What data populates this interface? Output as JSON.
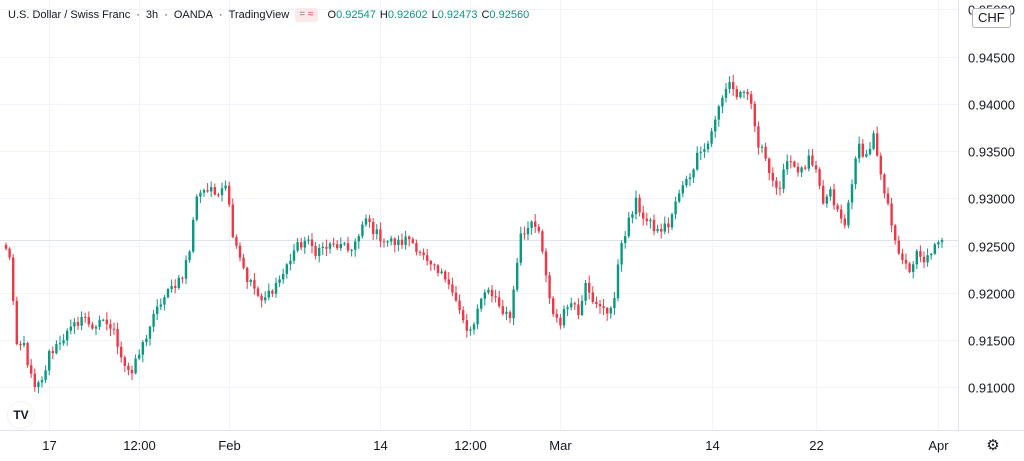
{
  "legend": {
    "symbol": "U.S. Dollar / Swiss Franc",
    "interval": "3h",
    "source": "OANDA",
    "platform": "TradingView",
    "o_label": "O",
    "o_value": "0.92547",
    "h_label": "H",
    "h_value": "0.92602",
    "l_label": "L",
    "l_value": "0.92473",
    "c_label": "C",
    "c_value": "0.92560"
  },
  "currency_button": "CHF",
  "logo_text": "TV",
  "colors": {
    "up": "#089981",
    "down": "#f23645",
    "grid": "#f0f3fa",
    "axis_text": "#131722",
    "price_line": "#dfe3ec"
  },
  "icons": {
    "settings": "gear-icon",
    "logo": "tradingview-logo-icon",
    "compare": "approx-icon"
  },
  "chart_data": {
    "type": "candlestick",
    "title": "U.S. Dollar / Swiss Franc · 3h · OANDA",
    "xlabel": "",
    "ylabel": "",
    "ylim": [
      0.9055,
      0.951
    ],
    "y_ticks": [
      0.91,
      0.915,
      0.92,
      0.925,
      0.93,
      0.935,
      0.94,
      0.945,
      0.95
    ],
    "y_tick_labels": [
      "0.91000",
      "0.91500",
      "0.92000",
      "0.92500",
      "0.93000",
      "0.93500",
      "0.94000",
      "0.94500",
      "0.95000"
    ],
    "x_ticks": [
      {
        "label": "17",
        "bar": 12
      },
      {
        "label": "12:00",
        "bar": 37
      },
      {
        "label": "Feb",
        "bar": 62
      },
      {
        "label": "14",
        "bar": 104
      },
      {
        "label": "12:00",
        "bar": 129
      },
      {
        "label": "Mar",
        "bar": 154
      },
      {
        "label": "14",
        "bar": 196
      },
      {
        "label": "22",
        "bar": 225
      },
      {
        "label": "Apr",
        "bar": 259
      }
    ],
    "last_close": 0.9256,
    "grid": true,
    "anchors": [
      [
        0,
        0.9245
      ],
      [
        1,
        0.924
      ],
      [
        3,
        0.914
      ],
      [
        5,
        0.9145
      ],
      [
        7,
        0.911
      ],
      [
        8,
        0.9098
      ],
      [
        10,
        0.9105
      ],
      [
        12,
        0.9135
      ],
      [
        15,
        0.915
      ],
      [
        18,
        0.916
      ],
      [
        21,
        0.9175
      ],
      [
        24,
        0.9165
      ],
      [
        28,
        0.9168
      ],
      [
        30,
        0.9158
      ],
      [
        33,
        0.9125
      ],
      [
        35,
        0.9115
      ],
      [
        37,
        0.9135
      ],
      [
        40,
        0.9165
      ],
      [
        43,
        0.919
      ],
      [
        46,
        0.9205
      ],
      [
        49,
        0.922
      ],
      [
        51,
        0.9245
      ],
      [
        53,
        0.9305
      ],
      [
        55,
        0.931
      ],
      [
        58,
        0.9305
      ],
      [
        61,
        0.9318
      ],
      [
        63,
        0.9265
      ],
      [
        65,
        0.924
      ],
      [
        67,
        0.9215
      ],
      [
        69,
        0.9205
      ],
      [
        71,
        0.9188
      ],
      [
        73,
        0.92
      ],
      [
        75,
        0.921
      ],
      [
        77,
        0.922
      ],
      [
        80,
        0.9245
      ],
      [
        83,
        0.9255
      ],
      [
        86,
        0.9245
      ],
      [
        89,
        0.9248
      ],
      [
        92,
        0.925
      ],
      [
        95,
        0.9245
      ],
      [
        98,
        0.9258
      ],
      [
        100,
        0.9278
      ],
      [
        103,
        0.9262
      ],
      [
        106,
        0.9255
      ],
      [
        109,
        0.9252
      ],
      [
        112,
        0.9258
      ],
      [
        115,
        0.9245
      ],
      [
        117,
        0.923
      ],
      [
        120,
        0.922
      ],
      [
        123,
        0.9215
      ],
      [
        126,
        0.918
      ],
      [
        128,
        0.9158
      ],
      [
        130,
        0.9165
      ],
      [
        133,
        0.9205
      ],
      [
        135,
        0.92
      ],
      [
        138,
        0.918
      ],
      [
        140,
        0.9175
      ],
      [
        143,
        0.9265
      ],
      [
        146,
        0.927
      ],
      [
        148,
        0.9265
      ],
      [
        150,
        0.9215
      ],
      [
        152,
        0.9178
      ],
      [
        154,
        0.917
      ],
      [
        157,
        0.9195
      ],
      [
        159,
        0.9178
      ],
      [
        161,
        0.9215
      ],
      [
        164,
        0.9185
      ],
      [
        167,
        0.918
      ],
      [
        169,
        0.9195
      ],
      [
        171,
        0.9255
      ],
      [
        173,
        0.9275
      ],
      [
        175,
        0.9295
      ],
      [
        178,
        0.9275
      ],
      [
        181,
        0.9265
      ],
      [
        184,
        0.9272
      ],
      [
        187,
        0.9305
      ],
      [
        190,
        0.9325
      ],
      [
        193,
        0.9355
      ],
      [
        195,
        0.9358
      ],
      [
        197,
        0.9385
      ],
      [
        199,
        0.9405
      ],
      [
        201,
        0.9425
      ],
      [
        203,
        0.9408
      ],
      [
        205,
        0.9415
      ],
      [
        207,
        0.9395
      ],
      [
        209,
        0.9355
      ],
      [
        211,
        0.9345
      ],
      [
        213,
        0.932
      ],
      [
        215,
        0.9305
      ],
      [
        217,
        0.9345
      ],
      [
        219,
        0.9335
      ],
      [
        221,
        0.9328
      ],
      [
        223,
        0.934
      ],
      [
        225,
        0.9325
      ],
      [
        227,
        0.9295
      ],
      [
        229,
        0.9305
      ],
      [
        231,
        0.9285
      ],
      [
        233,
        0.927
      ],
      [
        235,
        0.932
      ],
      [
        237,
        0.9355
      ],
      [
        239,
        0.9345
      ],
      [
        241,
        0.9365
      ],
      [
        243,
        0.932
      ],
      [
        245,
        0.929
      ],
      [
        247,
        0.926
      ],
      [
        249,
        0.923
      ],
      [
        251,
        0.9225
      ],
      [
        253,
        0.924
      ],
      [
        255,
        0.923
      ],
      [
        257,
        0.9245
      ],
      [
        259,
        0.925
      ],
      [
        260,
        0.9256
      ]
    ]
  }
}
